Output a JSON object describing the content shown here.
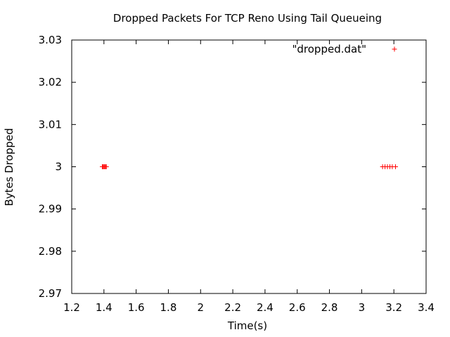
{
  "chart_data": {
    "type": "scatter",
    "title": "Dropped Packets For TCP Reno Using Tail Queueing",
    "xlabel": "Time(s)",
    "ylabel": "Bytes Dropped",
    "xlim": [
      1.2,
      3.4
    ],
    "ylim": [
      2.97,
      3.03
    ],
    "xticks": [
      1.2,
      1.4,
      1.6,
      1.8,
      2,
      2.2,
      2.4,
      2.6,
      2.8,
      3,
      3.2,
      3.4
    ],
    "xtick_labels": [
      "1.2",
      "1.4",
      "1.6",
      "1.8",
      "2",
      "2.2",
      "2.4",
      "2.6",
      "2.8",
      "3",
      "3.2",
      "3.4"
    ],
    "yticks": [
      2.97,
      2.98,
      2.99,
      3,
      3.01,
      3.02,
      3.03
    ],
    "ytick_labels": [
      "2.97",
      "2.98",
      "2.99",
      "3",
      "3.01",
      "3.02",
      "3.03"
    ],
    "grid": false,
    "legend": "top-right",
    "series": [
      {
        "name": "\"dropped.dat\"",
        "color": "#ff0000",
        "marker": "plus",
        "x": [
          1.39,
          1.395,
          1.4,
          1.405,
          1.41,
          1.415,
          3.13,
          3.145,
          3.16,
          3.175,
          3.19,
          3.21
        ],
        "y": [
          3,
          3,
          3,
          3,
          3,
          3,
          3,
          3,
          3,
          3,
          3,
          3
        ]
      }
    ]
  }
}
